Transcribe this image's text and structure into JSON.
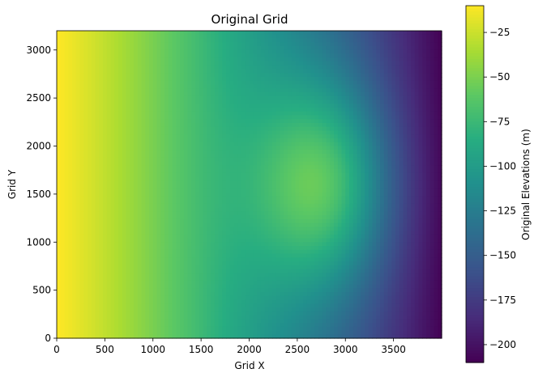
{
  "chart_data": {
    "type": "heatmap",
    "title": "Original Grid",
    "xlabel": "Grid X",
    "ylabel": "Grid Y",
    "colorbar_label": "Original Elevations (m)",
    "colormap": "viridis",
    "xlim": [
      0,
      4000
    ],
    "ylim": [
      0,
      3200
    ],
    "vlim": [
      -210,
      -10
    ],
    "x_ticks": [
      0,
      500,
      1000,
      1500,
      2000,
      2500,
      3000,
      3500
    ],
    "y_ticks": [
      0,
      500,
      1000,
      1500,
      2000,
      2500,
      3000
    ],
    "colorbar_ticks": [
      -25,
      -50,
      -75,
      -100,
      -125,
      -150,
      -175,
      -200
    ],
    "x_tick_labels": [
      "0",
      "500",
      "1000",
      "1500",
      "2000",
      "2500",
      "3000",
      "3500"
    ],
    "y_tick_labels": [
      "0",
      "500",
      "1000",
      "1500",
      "2000",
      "2500",
      "3000"
    ],
    "colorbar_tick_labels": [
      "−25",
      "−50",
      "−75",
      "−100",
      "−125",
      "−150",
      "−175",
      "−200"
    ],
    "field": {
      "left_edge_value": -10,
      "right_edge_value": -210,
      "bump_center_x": 2800,
      "bump_center_y": 1600,
      "bump_peak_value": -60
    },
    "grid": false
  }
}
